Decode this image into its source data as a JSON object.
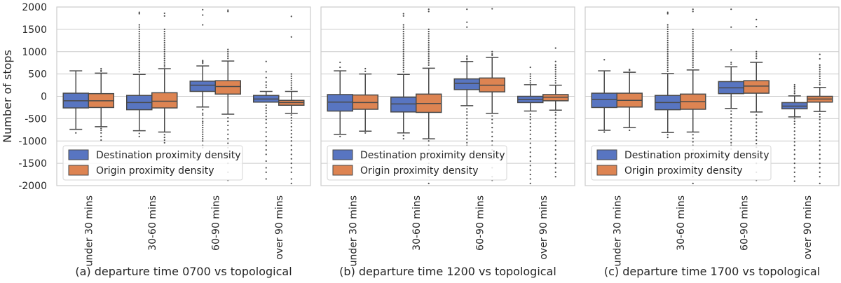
{
  "chart_data": [
    {
      "type": "box",
      "caption": "(a) departure time 0700 vs topological",
      "ylabel": "Number of stops",
      "xlabel": "",
      "categories": [
        "under 30 mins",
        "30-60 mins",
        "60-90 mins",
        "over 90 mins"
      ],
      "ylim": [
        -2000,
        2000
      ],
      "yticks": [
        2000,
        1500,
        1000,
        500,
        0,
        -500,
        -1000,
        -1500,
        -2000
      ],
      "grid": "horizontal",
      "legend": {
        "placement": "lower-left",
        "entries": [
          "Destination proximity density",
          "Origin proximity density"
        ]
      },
      "series": [
        {
          "name": "Destination proximity density",
          "color": "#5875c1",
          "boxes": [
            {
              "whislo": -740,
              "q1": -260,
              "med": -100,
              "q3": 70,
              "whishi": 570,
              "fliers": [
                -820
              ]
            },
            {
              "whislo": -770,
              "q1": -300,
              "med": -140,
              "q3": 20,
              "whishi": 490,
              "fliers": [
                1880,
                1850,
                1600,
                1550,
                1500,
                1450,
                1400,
                1350,
                1300,
                1250,
                1200,
                1150,
                1100,
                1050,
                1000,
                950,
                900,
                850,
                800,
                750,
                700,
                650,
                600,
                550,
                -830,
                -900
              ]
            },
            {
              "whislo": -240,
              "q1": 110,
              "med": 250,
              "q3": 340,
              "whishi": 680,
              "fliers": [
                1940,
                1820,
                1600,
                800,
                780,
                760,
                740,
                -300,
                -380,
                -420,
                -500,
                -560,
                -600,
                -650,
                -700,
                -750,
                -800,
                -850,
                -900,
                -950,
                -1000,
                -1100,
                -1150
              ]
            },
            {
              "whislo": -130,
              "q1": -130,
              "med": -60,
              "q3": 20,
              "whishi": 110,
              "fliers": [
                780,
                550,
                420,
                320,
                250,
                200,
                -200,
                -260,
                -320,
                -380,
                -450,
                -520,
                -600,
                -700,
                -800,
                -900,
                -1000,
                -1100,
                -1200,
                -1300,
                -1450,
                -1600,
                -1700,
                -1850
              ]
            }
          ]
        },
        {
          "name": "Origin proximity density",
          "color": "#dd8452",
          "boxes": [
            {
              "whislo": -680,
              "q1": -250,
              "med": -100,
              "q3": 60,
              "whishi": 520,
              "fliers": [
                620,
                580,
                560,
                -720,
                -760,
                -820,
                -900,
                -980
              ]
            },
            {
              "whislo": -800,
              "q1": -260,
              "med": -110,
              "q3": 80,
              "whishi": 620,
              "fliers": [
                1860,
                1800,
                1500,
                1450,
                1400,
                1350,
                1300,
                1250,
                1200,
                1150,
                1100,
                1050,
                1000,
                950,
                900,
                850,
                800,
                750,
                700,
                660,
                -860,
                -920,
                -980,
                -1040
              ]
            },
            {
              "whislo": -400,
              "q1": 50,
              "med": 220,
              "q3": 350,
              "whishi": 790,
              "fliers": [
                1930,
                1900,
                1050,
                1000,
                950,
                900,
                850,
                -480,
                -560,
                -650,
                -750,
                -850,
                -950,
                -1050,
                -1150,
                -1300,
                -1500,
                -1700,
                -1880
              ]
            },
            {
              "whislo": -380,
              "q1": -200,
              "med": -140,
              "q3": -90,
              "whishi": 110,
              "fliers": [
                1790,
                1330,
                500,
                450,
                400,
                350,
                300,
                250,
                200,
                160,
                -420,
                -480,
                -540,
                -600,
                -680,
                -760,
                -840,
                -920,
                -1000,
                -1100,
                -1200,
                -1300,
                -1400,
                -1500,
                -1600,
                -1700,
                -1850,
                -1950
              ]
            }
          ]
        }
      ]
    },
    {
      "type": "box",
      "caption": "(b) departure time 1200 vs topological",
      "ylabel": "",
      "xlabel": "",
      "categories": [
        "under 30 mins",
        "30-60 mins",
        "60-90 mins",
        "over 90 mins"
      ],
      "ylim": [
        -2000,
        2000
      ],
      "yticks": [
        2000,
        1500,
        1000,
        500,
        0,
        -500,
        -1000,
        -1500,
        -2000
      ],
      "grid": "horizontal",
      "legend": {
        "placement": "lower-left",
        "entries": [
          "Destination proximity density",
          "Origin proximity density"
        ]
      },
      "series": [
        {
          "name": "Destination proximity density",
          "color": "#5875c1",
          "boxes": [
            {
              "whislo": -850,
              "q1": -330,
              "med": -130,
              "q3": 40,
              "whishi": 570,
              "fliers": [
                760,
                650,
                -900
              ]
            },
            {
              "whislo": -820,
              "q1": -350,
              "med": -170,
              "q3": -20,
              "whishi": 490,
              "fliers": [
                1850,
                1800,
                1600,
                1550,
                1500,
                1450,
                1400,
                1350,
                1300,
                1250,
                1200,
                1150,
                1100,
                1050,
                1000,
                950,
                900,
                850,
                800,
                750,
                700,
                650,
                600,
                550,
                -880,
                -950
              ]
            },
            {
              "whislo": -210,
              "q1": 150,
              "med": 290,
              "q3": 390,
              "whishi": 780,
              "fliers": [
                1950,
                1660,
                1550,
                900,
                850,
                820,
                -280,
                -350,
                -420,
                -500,
                -580,
                -650,
                -720,
                -800,
                -880,
                -960,
                -1040,
                -1100
              ]
            },
            {
              "whislo": -330,
              "q1": -140,
              "med": -70,
              "q3": 0,
              "whishi": 260,
              "fliers": [
                650,
                500,
                450,
                400,
                350,
                300,
                -400,
                -460,
                -520,
                -600,
                -680,
                -760,
                -850,
                -950,
                -1050,
                -1150,
                -1250,
                -1350,
                -1450,
                -1550,
                -1650,
                -1750,
                -1850,
                -1950
              ]
            }
          ]
        },
        {
          "name": "Origin proximity density",
          "color": "#dd8452",
          "boxes": [
            {
              "whislo": -780,
              "q1": -290,
              "med": -140,
              "q3": 30,
              "whishi": 500,
              "fliers": [
                620,
                560,
                -820
              ]
            },
            {
              "whislo": -950,
              "q1": -360,
              "med": -160,
              "q3": 50,
              "whishi": 630,
              "fliers": [
                1950,
                1900,
                1500,
                1450,
                1400,
                1350,
                1300,
                1250,
                1200,
                1150,
                1100,
                1050,
                1000,
                950,
                900,
                850,
                800,
                750,
                700,
                -1000,
                -1100,
                -1200,
                -1300,
                -1400,
                -1500,
                -1600,
                -1700,
                -1800,
                -1950
              ]
            },
            {
              "whislo": -380,
              "q1": 100,
              "med": 250,
              "q3": 410,
              "whishi": 870,
              "fliers": [
                1960,
                1000,
                950,
                920,
                -440,
                -520,
                -600,
                -700,
                -800,
                -900,
                -1000,
                -1100,
                -1200,
                -1400,
                -1600,
                -1800,
                -1880
              ]
            },
            {
              "whislo": -310,
              "q1": -100,
              "med": -20,
              "q3": 40,
              "whishi": 250,
              "fliers": [
                1080,
                780,
                700,
                650,
                600,
                550,
                500,
                450,
                400,
                350,
                300,
                -360,
                -420,
                -500,
                -580,
                -660,
                -740,
                -820,
                -900,
                -1000,
                -1100,
                -1200,
                -1300,
                -1400,
                -1500,
                -1600,
                -1700,
                -1800
              ]
            }
          ]
        }
      ]
    },
    {
      "type": "box",
      "caption": "(c) departure time 1700 vs topological",
      "ylabel": "",
      "xlabel": "",
      "categories": [
        "under 30 mins",
        "30-60 mins",
        "60-90 mins",
        "over 90 mins"
      ],
      "ylim": [
        -2000,
        2000
      ],
      "yticks": [
        2000,
        1500,
        1000,
        500,
        0,
        -500,
        -1000,
        -1500,
        -2000
      ],
      "grid": "horizontal",
      "legend": {
        "placement": "lower-left",
        "entries": [
          "Destination proximity density",
          "Origin proximity density"
        ]
      },
      "series": [
        {
          "name": "Destination proximity density",
          "color": "#5875c1",
          "boxes": [
            {
              "whislo": -760,
              "q1": -250,
              "med": -70,
              "q3": 70,
              "whishi": 570,
              "fliers": [
                820,
                -800
              ]
            },
            {
              "whislo": -810,
              "q1": -300,
              "med": -140,
              "q3": 20,
              "whishi": 510,
              "fliers": [
                1880,
                1850,
                1600,
                1550,
                1500,
                1450,
                1400,
                1350,
                1300,
                1250,
                1200,
                1150,
                1100,
                1050,
                1000,
                950,
                900,
                850,
                800,
                750,
                700,
                650,
                600,
                560,
                -860,
                -920
              ]
            },
            {
              "whislo": -270,
              "q1": 60,
              "med": 190,
              "q3": 330,
              "whishi": 660,
              "fliers": [
                1950,
                1550,
                1040,
                760,
                720,
                -330,
                -400,
                -480,
                -560,
                -640,
                -720,
                -800,
                -880,
                -960,
                -1040,
                -1100,
                -1180
              ]
            },
            {
              "whislo": -460,
              "q1": -280,
              "med": -220,
              "q3": -140,
              "whishi": 10,
              "fliers": [
                260,
                220,
                180,
                140,
                100,
                60,
                -500,
                -560,
                -620,
                -700,
                -780,
                -860,
                -940,
                -1020,
                -1100,
                -1200,
                -1300,
                -1400,
                -1500,
                -1600,
                -1700,
                -1800,
                -1900
              ]
            }
          ]
        },
        {
          "name": "Origin proximity density",
          "color": "#dd8452",
          "boxes": [
            {
              "whislo": -700,
              "q1": -240,
              "med": -90,
              "q3": 70,
              "whishi": 540,
              "fliers": [
                600,
                580,
                -760
              ]
            },
            {
              "whislo": -800,
              "q1": -290,
              "med": -120,
              "q3": 50,
              "whishi": 590,
              "fliers": [
                1950,
                1900,
                1500,
                1450,
                1400,
                1350,
                1300,
                1250,
                1200,
                1150,
                1100,
                1050,
                1000,
                950,
                900,
                850,
                800,
                750,
                700,
                650,
                -860,
                -940,
                -1020,
                -1100,
                -1200,
                -1300,
                -1400,
                -1500,
                -1600,
                -1700,
                -1800,
                -1950
              ]
            },
            {
              "whislo": -350,
              "q1": 70,
              "med": 230,
              "q3": 350,
              "whishi": 760,
              "fliers": [
                1720,
                1560,
                1000,
                950,
                900,
                850,
                -420,
                -500,
                -580,
                -660,
                -740,
                -820,
                -900,
                -980,
                -1060,
                -1140,
                -1300,
                -1500,
                -1700,
                -1880
              ]
            },
            {
              "whislo": -340,
              "q1": -130,
              "med": -60,
              "q3": 0,
              "whishi": 200,
              "fliers": [
                940,
                840,
                700,
                650,
                600,
                550,
                500,
                450,
                400,
                350,
                300,
                260,
                -400,
                -460,
                -520,
                -600,
                -680,
                -760,
                -840,
                -920,
                -1000,
                -1100,
                -1200,
                -1300,
                -1400,
                -1500,
                -1600,
                -1700,
                -1800,
                -1950
              ]
            }
          ]
        }
      ]
    }
  ]
}
